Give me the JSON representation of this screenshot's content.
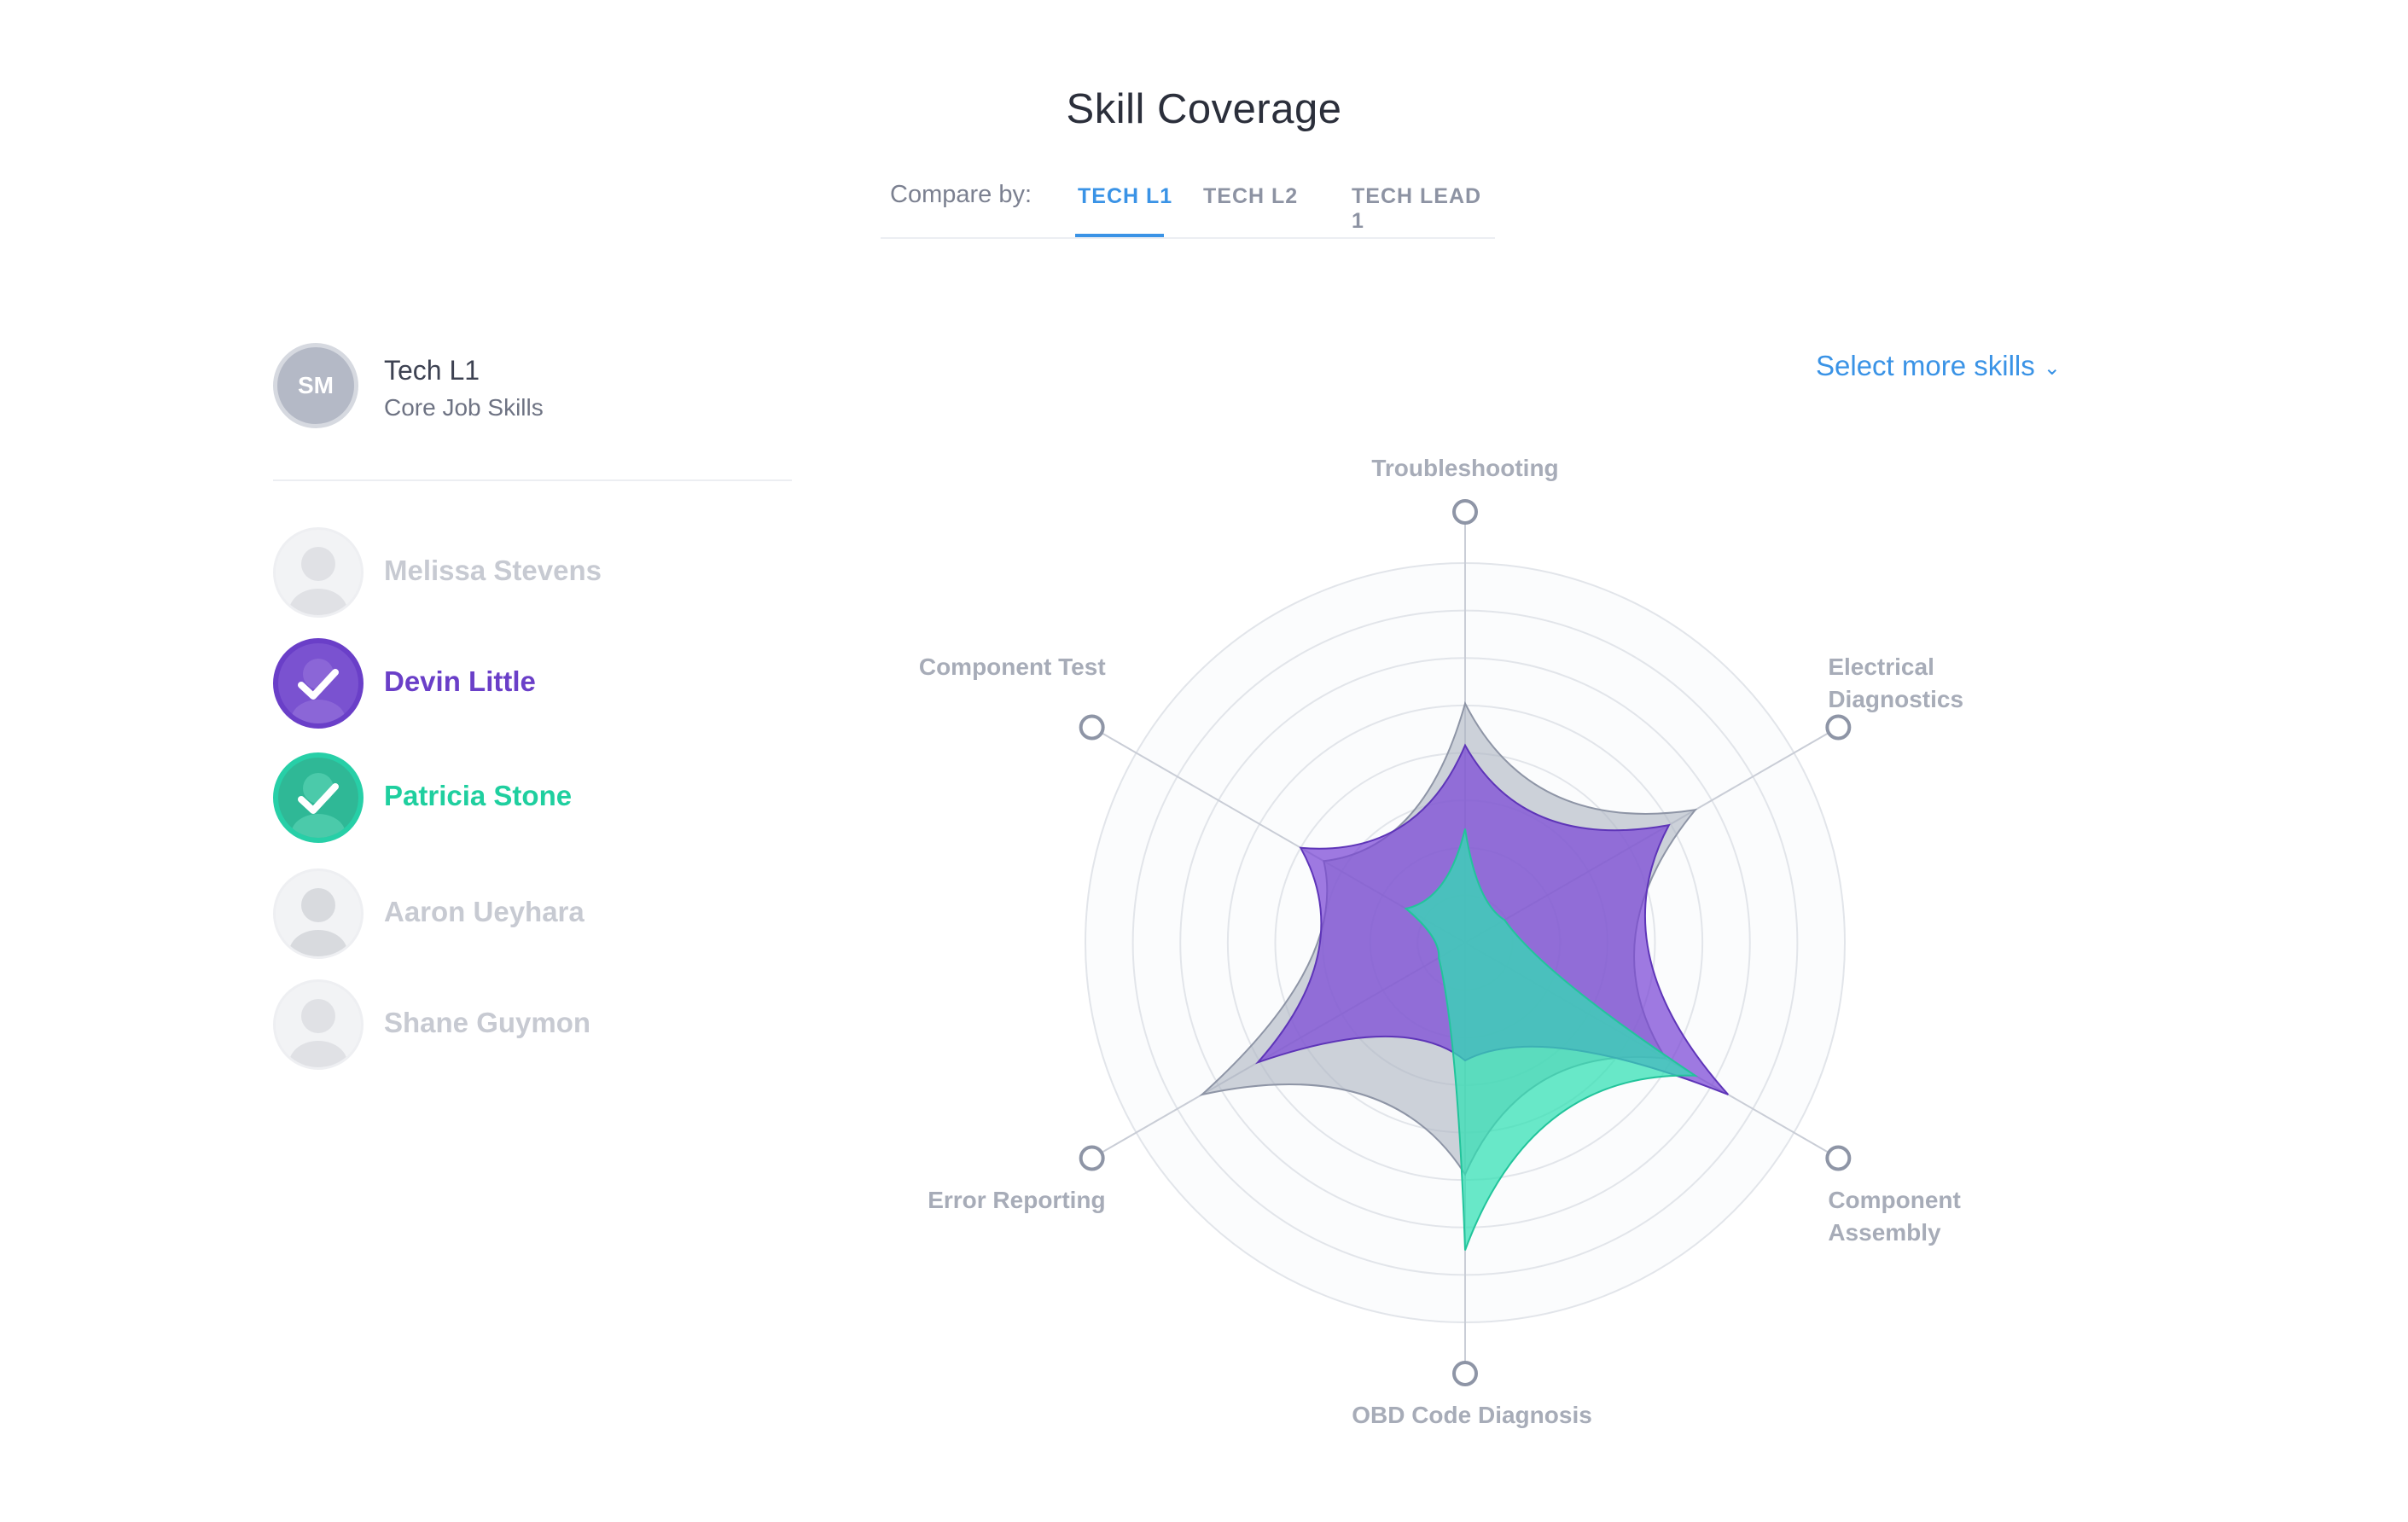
{
  "header": {
    "title": "Skill Coverage",
    "compare_label": "Compare by:",
    "tabs": [
      {
        "label": "TECH L1",
        "active": true
      },
      {
        "label": "TECH L2",
        "active": false
      },
      {
        "label": "TECH LEAD 1",
        "active": false
      }
    ]
  },
  "profile": {
    "initials": "SM",
    "name": "Tech L1",
    "subtitle": "Core Job Skills"
  },
  "people": [
    {
      "name": "Melissa Stevens",
      "selected": false
    },
    {
      "name": "Devin Little",
      "selected": true,
      "color": "#6a3fc8"
    },
    {
      "name": "Patricia Stone",
      "selected": true,
      "color": "#27cfa7"
    },
    {
      "name": "Aaron Ueyhara",
      "selected": false
    },
    {
      "name": "Shane Guymon",
      "selected": false
    }
  ],
  "select_more": {
    "label": "Select more skills",
    "icon": "chevron-down-icon"
  },
  "chart_data": {
    "type": "radar",
    "axes": [
      "Troubleshooting",
      "Electrical Diagnostics",
      "Component Assembly",
      "OBD Code Diagnosis",
      "Error Reporting",
      "Component Test"
    ],
    "rmax": 10,
    "rings": 8,
    "series": [
      {
        "name": "Tech L1",
        "values": [
          6.3,
          7.0,
          6.1,
          6.1,
          8.0,
          4.3
        ],
        "fill": "#aeb4c2",
        "stroke": "#8e95a6"
      },
      {
        "name": "Devin Little",
        "values": [
          5.2,
          6.2,
          8.0,
          3.1,
          6.3,
          5.0
        ],
        "fill": "#7a46d6",
        "stroke": "#5e35b8"
      },
      {
        "name": "Patricia Stone",
        "values": [
          3.0,
          1.2,
          7.0,
          8.1,
          0.8,
          1.8
        ],
        "fill": "#2fe0b3",
        "stroke": "#22c49b"
      }
    ]
  },
  "colors": {
    "accent": "#3a93e6",
    "purple": "#6a3fc8",
    "teal": "#27cfa7"
  }
}
